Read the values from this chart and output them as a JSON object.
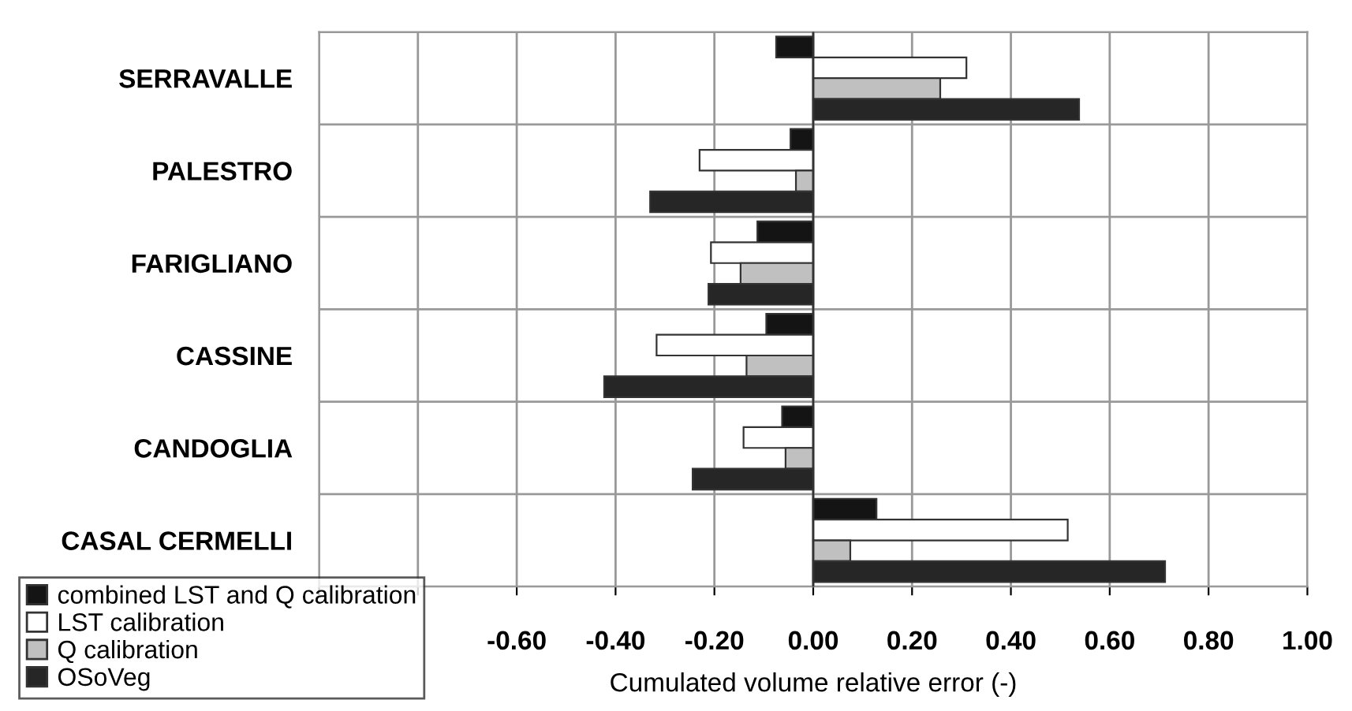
{
  "chart_data": {
    "type": "bar",
    "orientation": "horizontal",
    "xlabel": "Cumulated volume relative error (-)",
    "categories": [
      "SERRAVALLE",
      "PALESTRO",
      "FARIGLIANO",
      "CASSINE",
      "CANDOGLIA",
      "CASAL CERMELLI"
    ],
    "series": [
      {
        "name": "combined LST and Q calibration",
        "color": "#141414",
        "values": [
          -0.075,
          -0.046,
          -0.113,
          -0.095,
          -0.063,
          0.128
        ]
      },
      {
        "name": "LST calibration",
        "color": "#ffffff",
        "values": [
          0.31,
          -0.23,
          -0.207,
          -0.317,
          -0.141,
          0.515
        ]
      },
      {
        "name": "Q calibration",
        "color": "#c0c0c0",
        "values": [
          0.257,
          -0.035,
          -0.147,
          -0.135,
          -0.056,
          0.075
        ]
      },
      {
        "name": "OSoVeg",
        "color": "#262626",
        "values": [
          0.538,
          -0.33,
          -0.212,
          -0.423,
          -0.244,
          0.712
        ]
      }
    ],
    "xlim": [
      -1.0,
      1.0
    ],
    "xticks": [
      {
        "value": -1.0,
        "label": null
      },
      {
        "value": -0.8,
        "label": null
      },
      {
        "value": -0.6,
        "label": "-0.60"
      },
      {
        "value": -0.4,
        "label": "-0.40"
      },
      {
        "value": -0.2,
        "label": "-0.20"
      },
      {
        "value": 0.0,
        "label": "0.00"
      },
      {
        "value": 0.2,
        "label": "0.20"
      },
      {
        "value": 0.4,
        "label": "0.40"
      },
      {
        "value": 0.6,
        "label": "0.60"
      },
      {
        "value": 0.8,
        "label": "0.80"
      },
      {
        "value": 1.0,
        "label": "1.00"
      }
    ],
    "grid": true,
    "legend": "bottom left"
  }
}
